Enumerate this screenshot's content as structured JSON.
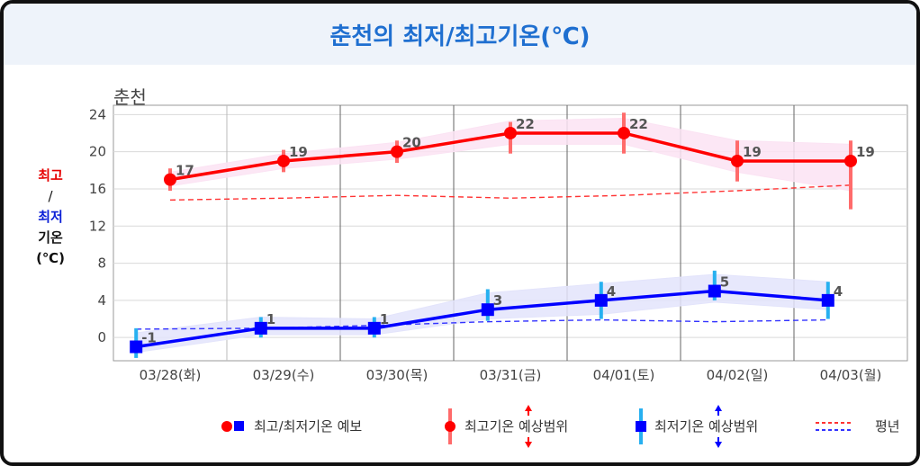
{
  "chart_data": {
    "type": "line",
    "title": "춘천의 최저/최고기온(℃)",
    "location": "춘천",
    "ylabel_parts": [
      "최고",
      "/",
      "최저",
      "기온",
      "(℃)"
    ],
    "categories": [
      "03/28(화)",
      "03/29(수)",
      "03/30(목)",
      "03/31(금)",
      "04/01(토)",
      "04/02(일)",
      "04/03(월)"
    ],
    "ylim": [
      -2.5,
      25
    ],
    "yticks": [
      0,
      4,
      8,
      12,
      16,
      20,
      24
    ],
    "grid": true,
    "series": [
      {
        "name": "최고기온 예상범위",
        "color": "#ff0000",
        "x": [
          0.5,
          1.5,
          2.5,
          3.5,
          4.5,
          5.5,
          6.5
        ],
        "values": [
          17,
          19,
          20,
          22,
          22,
          19,
          19
        ],
        "labels": [
          "17",
          "19",
          "20",
          "22",
          "22",
          "19",
          "19"
        ],
        "range_low": [
          15.8,
          17.8,
          18.8,
          19.8,
          19.8,
          16.8,
          13.8
        ],
        "range_high": [
          18.2,
          20.2,
          21.2,
          23.2,
          24.2,
          21.2,
          21.2
        ],
        "band_low": [
          16.3,
          18.2,
          19.2,
          20.8,
          20.8,
          17.8,
          15.8
        ],
        "band_high": [
          17.8,
          19.8,
          21.0,
          23.3,
          23.6,
          21.2,
          20.8
        ]
      },
      {
        "name": "최저기온 예상범위",
        "color": "#0000ff",
        "x": [
          0.2,
          1.3,
          2.3,
          3.3,
          4.3,
          5.3,
          6.3
        ],
        "values": [
          -1,
          1,
          1,
          3,
          4,
          5,
          4
        ],
        "labels": [
          "-1",
          "1",
          "1",
          "3",
          "4",
          "5",
          "4"
        ],
        "range_low": [
          -2.2,
          0,
          0,
          1.8,
          2,
          4,
          2
        ],
        "range_high": [
          1,
          2.2,
          2.2,
          5.2,
          6,
          7.2,
          6
        ],
        "band_low": [
          -1.6,
          0.3,
          0.3,
          2.0,
          2.5,
          3.8,
          3.0
        ],
        "band_high": [
          0.5,
          2.2,
          2.0,
          4.8,
          5.8,
          6.8,
          6.0
        ]
      }
    ],
    "normals": [
      {
        "name": "평년 최고",
        "color": "#ff3333",
        "x": [
          0.5,
          1.5,
          2.5,
          3.5,
          4.5,
          5.5,
          6.5
        ],
        "values": [
          14.8,
          15.0,
          15.3,
          15.0,
          15.3,
          15.8,
          16.4
        ]
      },
      {
        "name": "평년 최저",
        "color": "#3333ff",
        "x": [
          0.2,
          1.3,
          2.3,
          3.3,
          4.3,
          5.3,
          6.3
        ],
        "values": [
          0.9,
          1.0,
          1.3,
          1.7,
          1.9,
          1.7,
          1.9
        ]
      }
    ],
    "legend": {
      "forecast": "최고/최저기온 예보",
      "high_range": "최고기온 예상범위",
      "low_range": "최저기온 예상범위",
      "normal": "평년"
    }
  }
}
